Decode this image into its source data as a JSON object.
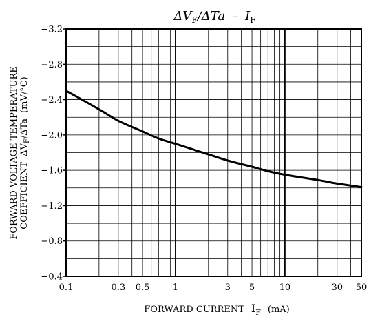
{
  "chart_data": {
    "type": "line",
    "title": {
      "lhs_delta1": "Δ",
      "lhs_v": "V",
      "lhs_sub": "F",
      "lhs_slash": "/",
      "lhs_delta2": "Δ",
      "lhs_ta": "Ta",
      "dash": "–",
      "rhs_i": "I",
      "rhs_sub": "F"
    },
    "xlabel": {
      "main": "FORWARD CURRENT",
      "symbol": "I",
      "sub": "F",
      "unit": "(mA)"
    },
    "ylabel": {
      "line1": "FORWARD VOLTAGE TEMPERATURE",
      "line2_text": "COEFFICIENT",
      "line2_delta1": "ΔV",
      "line2_sub": "F",
      "line2_rest": "/ΔTa",
      "line2_unit": "(mV/°C)"
    },
    "x_scale": "log",
    "xlim": [
      0.1,
      50
    ],
    "ylim": [
      -0.4,
      -3.2
    ],
    "y_inverted": true,
    "grid": true,
    "x_ticks": [
      {
        "value": 0.1,
        "label": "0.1"
      },
      {
        "value": 0.3,
        "label": "0.3"
      },
      {
        "value": 0.5,
        "label": "0.5"
      },
      {
        "value": 1,
        "label": "1"
      },
      {
        "value": 3,
        "label": "3"
      },
      {
        "value": 5,
        "label": "5"
      },
      {
        "value": 10,
        "label": "10"
      },
      {
        "value": 30,
        "label": "30"
      },
      {
        "value": 50,
        "label": "50"
      }
    ],
    "x_minor_grid": [
      0.2,
      0.3,
      0.4,
      0.5,
      0.6,
      0.7,
      0.8,
      0.9,
      2,
      3,
      4,
      5,
      6,
      7,
      8,
      9,
      20,
      30,
      40
    ],
    "x_major_grid": [
      1,
      10
    ],
    "y_ticks": [
      {
        "value": -3.2,
        "label": "−3.2"
      },
      {
        "value": -2.8,
        "label": "−2.8"
      },
      {
        "value": -2.4,
        "label": "−2.4"
      },
      {
        "value": -2.0,
        "label": "−2.0"
      },
      {
        "value": -1.6,
        "label": "−1.6"
      },
      {
        "value": -1.2,
        "label": "−1.2"
      },
      {
        "value": -0.8,
        "label": "−0.8"
      },
      {
        "value": -0.4,
        "label": "−0.4"
      }
    ],
    "y_grid_step": 0.2,
    "series": [
      {
        "color": "#000000",
        "x": [
          0.1,
          0.2,
          0.3,
          0.5,
          0.7,
          1,
          2,
          3,
          5,
          7,
          10,
          20,
          30,
          50
        ],
        "y": [
          -2.5,
          -2.29,
          -2.16,
          -2.04,
          -1.96,
          -1.9,
          -1.78,
          -1.71,
          -1.64,
          -1.59,
          -1.55,
          -1.49,
          -1.45,
          -1.41
        ]
      }
    ]
  }
}
